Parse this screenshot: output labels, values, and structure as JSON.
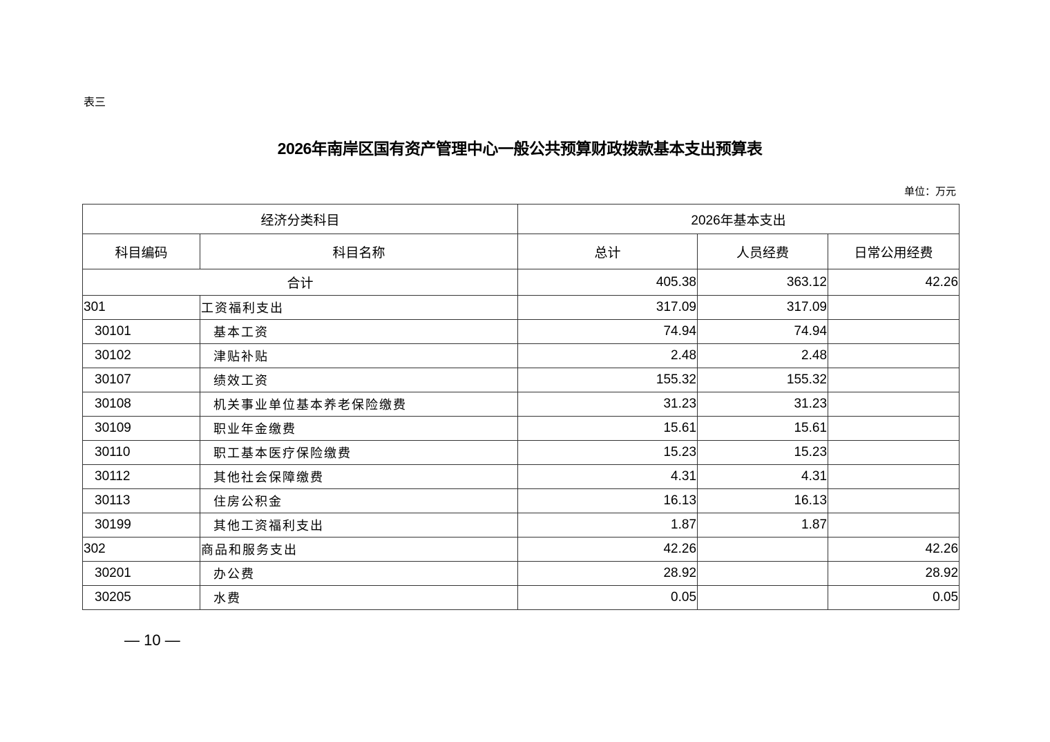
{
  "doc": {
    "label": "表三",
    "title": "2026年南岸区国有资产管理中心一般公共预算财政拨款基本支出预算表",
    "unit": "单位：万元",
    "page_number": "— 10 —"
  },
  "table": {
    "group_headers": [
      "经济分类科目",
      "2026年基本支出"
    ],
    "headers": [
      "科目编码",
      "科目名称",
      "总计",
      "人员经费",
      "日常公用经费"
    ],
    "total": {
      "label": "合计",
      "total": "405.38",
      "personnel": "363.12",
      "public": "42.26"
    },
    "rows": [
      {
        "code": "301",
        "name": "工资福利支出",
        "total": "317.09",
        "personnel": "317.09",
        "public": "",
        "level": 1
      },
      {
        "code": "30101",
        "name": "基本工资",
        "total": "74.94",
        "personnel": "74.94",
        "public": "",
        "level": 2
      },
      {
        "code": "30102",
        "name": "津贴补贴",
        "total": "2.48",
        "personnel": "2.48",
        "public": "",
        "level": 2
      },
      {
        "code": "30107",
        "name": "绩效工资",
        "total": "155.32",
        "personnel": "155.32",
        "public": "",
        "level": 2
      },
      {
        "code": "30108",
        "name": "机关事业单位基本养老保险缴费",
        "total": "31.23",
        "personnel": "31.23",
        "public": "",
        "level": 2
      },
      {
        "code": "30109",
        "name": "职业年金缴费",
        "total": "15.61",
        "personnel": "15.61",
        "public": "",
        "level": 2
      },
      {
        "code": "30110",
        "name": "职工基本医疗保险缴费",
        "total": "15.23",
        "personnel": "15.23",
        "public": "",
        "level": 2
      },
      {
        "code": "30112",
        "name": "其他社会保障缴费",
        "total": "4.31",
        "personnel": "4.31",
        "public": "",
        "level": 2
      },
      {
        "code": "30113",
        "name": "住房公积金",
        "total": "16.13",
        "personnel": "16.13",
        "public": "",
        "level": 2
      },
      {
        "code": "30199",
        "name": "其他工资福利支出",
        "total": "1.87",
        "personnel": "1.87",
        "public": "",
        "level": 2
      },
      {
        "code": "302",
        "name": "商品和服务支出",
        "total": "42.26",
        "personnel": "",
        "public": "42.26",
        "level": 1
      },
      {
        "code": "30201",
        "name": "办公费",
        "total": "28.92",
        "personnel": "",
        "public": "28.92",
        "level": 2
      },
      {
        "code": "30205",
        "name": "水费",
        "total": "0.05",
        "personnel": "",
        "public": "0.05",
        "level": 2
      }
    ]
  }
}
